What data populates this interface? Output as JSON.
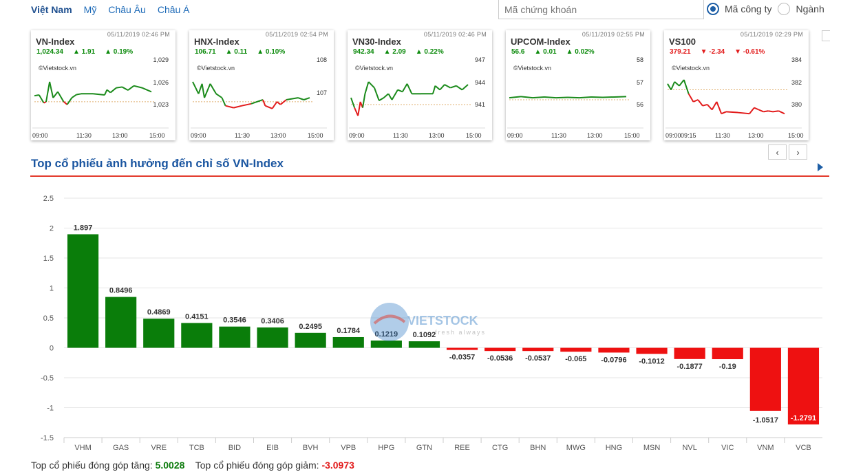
{
  "tabs": [
    "Việt Nam",
    "Mỹ",
    "Châu Âu",
    "Châu Á"
  ],
  "search": {
    "placeholder": "Mã chứng khoán"
  },
  "radio": {
    "option1": "Mã công ty",
    "option2": "Ngành"
  },
  "nav": {
    "prev": "‹",
    "next": "›"
  },
  "mini_charts": [
    {
      "name": "VN-Index",
      "time": "05/11/2019 02:46 PM",
      "value": "1,024.34",
      "change": "▲ 1.91",
      "pct": "▲ 0.19%",
      "dir": "up",
      "source": "©Vietstock.vn",
      "y_ticks": [
        "1,029",
        "1,026",
        "1,023"
      ],
      "x_ticks": [
        "09:00",
        "11:30",
        "13:00",
        "15:00"
      ]
    },
    {
      "name": "HNX-Index",
      "time": "05/11/2019 02:54 PM",
      "value": "106.71",
      "change": "▲ 0.11",
      "pct": "▲ 0.10%",
      "dir": "up",
      "source": "©Vietstock.vn",
      "y_ticks": [
        "108",
        "107"
      ],
      "x_ticks": [
        "09:00",
        "11:30",
        "13:00",
        "15:00"
      ]
    },
    {
      "name": "VN30-Index",
      "time": "05/11/2019 02:46 PM",
      "value": "942.34",
      "change": "▲ 2.09",
      "pct": "▲ 0.22%",
      "dir": "up",
      "source": "©Vietstock.vn",
      "y_ticks": [
        "947",
        "944",
        "941"
      ],
      "x_ticks": [
        "09:00",
        "11:30",
        "13:00",
        "15:00"
      ]
    },
    {
      "name": "UPCOM-Index",
      "time": "05/11/2019 02:55 PM",
      "value": "56.6",
      "change": "▲ 0.01",
      "pct": "▲ 0.02%",
      "dir": "up",
      "source": "©Vietstock.vn",
      "y_ticks": [
        "58",
        "57",
        "56"
      ],
      "x_ticks": [
        "09:00",
        "11:30",
        "13:00",
        "15:00"
      ]
    },
    {
      "name": "VS100",
      "time": "05/11/2019 02:29 PM",
      "value": "379.21",
      "change": "▼ -2.34",
      "pct": "▼ -0.61%",
      "dir": "down",
      "source": "©Vietstock.vn",
      "y_ticks": [
        "384",
        "382",
        "380"
      ],
      "x_ticks": [
        "09:00",
        "09:15",
        "11:30",
        "13:00",
        "15:00"
      ]
    }
  ],
  "section_title": "Top cổ phiếu ảnh hưởng đến chỉ số VN-Index",
  "watermark": {
    "brand": "VIETSTOCK",
    "tagline": "fresh always"
  },
  "colors": {
    "positive": "#0a7d0a",
    "negative": "#ee1111",
    "accent": "#1a55a0",
    "rule": "#e33a2c"
  },
  "chart_data": {
    "type": "bar",
    "categories": [
      "VHM",
      "GAS",
      "VRE",
      "TCB",
      "BID",
      "EIB",
      "BVH",
      "VPB",
      "HPG",
      "GTN",
      "REE",
      "CTG",
      "BHN",
      "MWG",
      "HNG",
      "MSN",
      "NVL",
      "VIC",
      "VNM",
      "VCB"
    ],
    "values": [
      1.897,
      0.8496,
      0.4869,
      0.4151,
      0.3546,
      0.3406,
      0.2495,
      0.1784,
      0.1219,
      0.1092,
      -0.0357,
      -0.0536,
      -0.0537,
      -0.065,
      -0.0796,
      -0.1012,
      -0.1877,
      -0.19,
      -1.0517,
      -1.2791
    ],
    "value_labels": [
      "1.897",
      "0.8496",
      "0.4869",
      "0.4151",
      "0.3546",
      "0.3406",
      "0.2495",
      "0.1784",
      "0.1219",
      "0.1092",
      "-0.0357",
      "-0.0536",
      "-0.0537",
      "-0.065",
      "-0.0796",
      "-0.1012",
      "-0.1877",
      "-0.19",
      "-1.0517",
      "-1.2791"
    ],
    "y_ticks": [
      "2.5",
      "2",
      "1.5",
      "1",
      "0.5",
      "0",
      "-0.5",
      "-1",
      "-1.5"
    ],
    "ylim": [
      -1.5,
      2.5
    ],
    "grid": true,
    "title": "",
    "xlabel": "",
    "ylabel": ""
  },
  "footer": {
    "up_label": "Top cổ phiếu đóng góp tăng:",
    "up_value": "5.0028",
    "down_label": "Top cổ phiếu đóng góp giảm:",
    "down_value": "-3.0973"
  }
}
